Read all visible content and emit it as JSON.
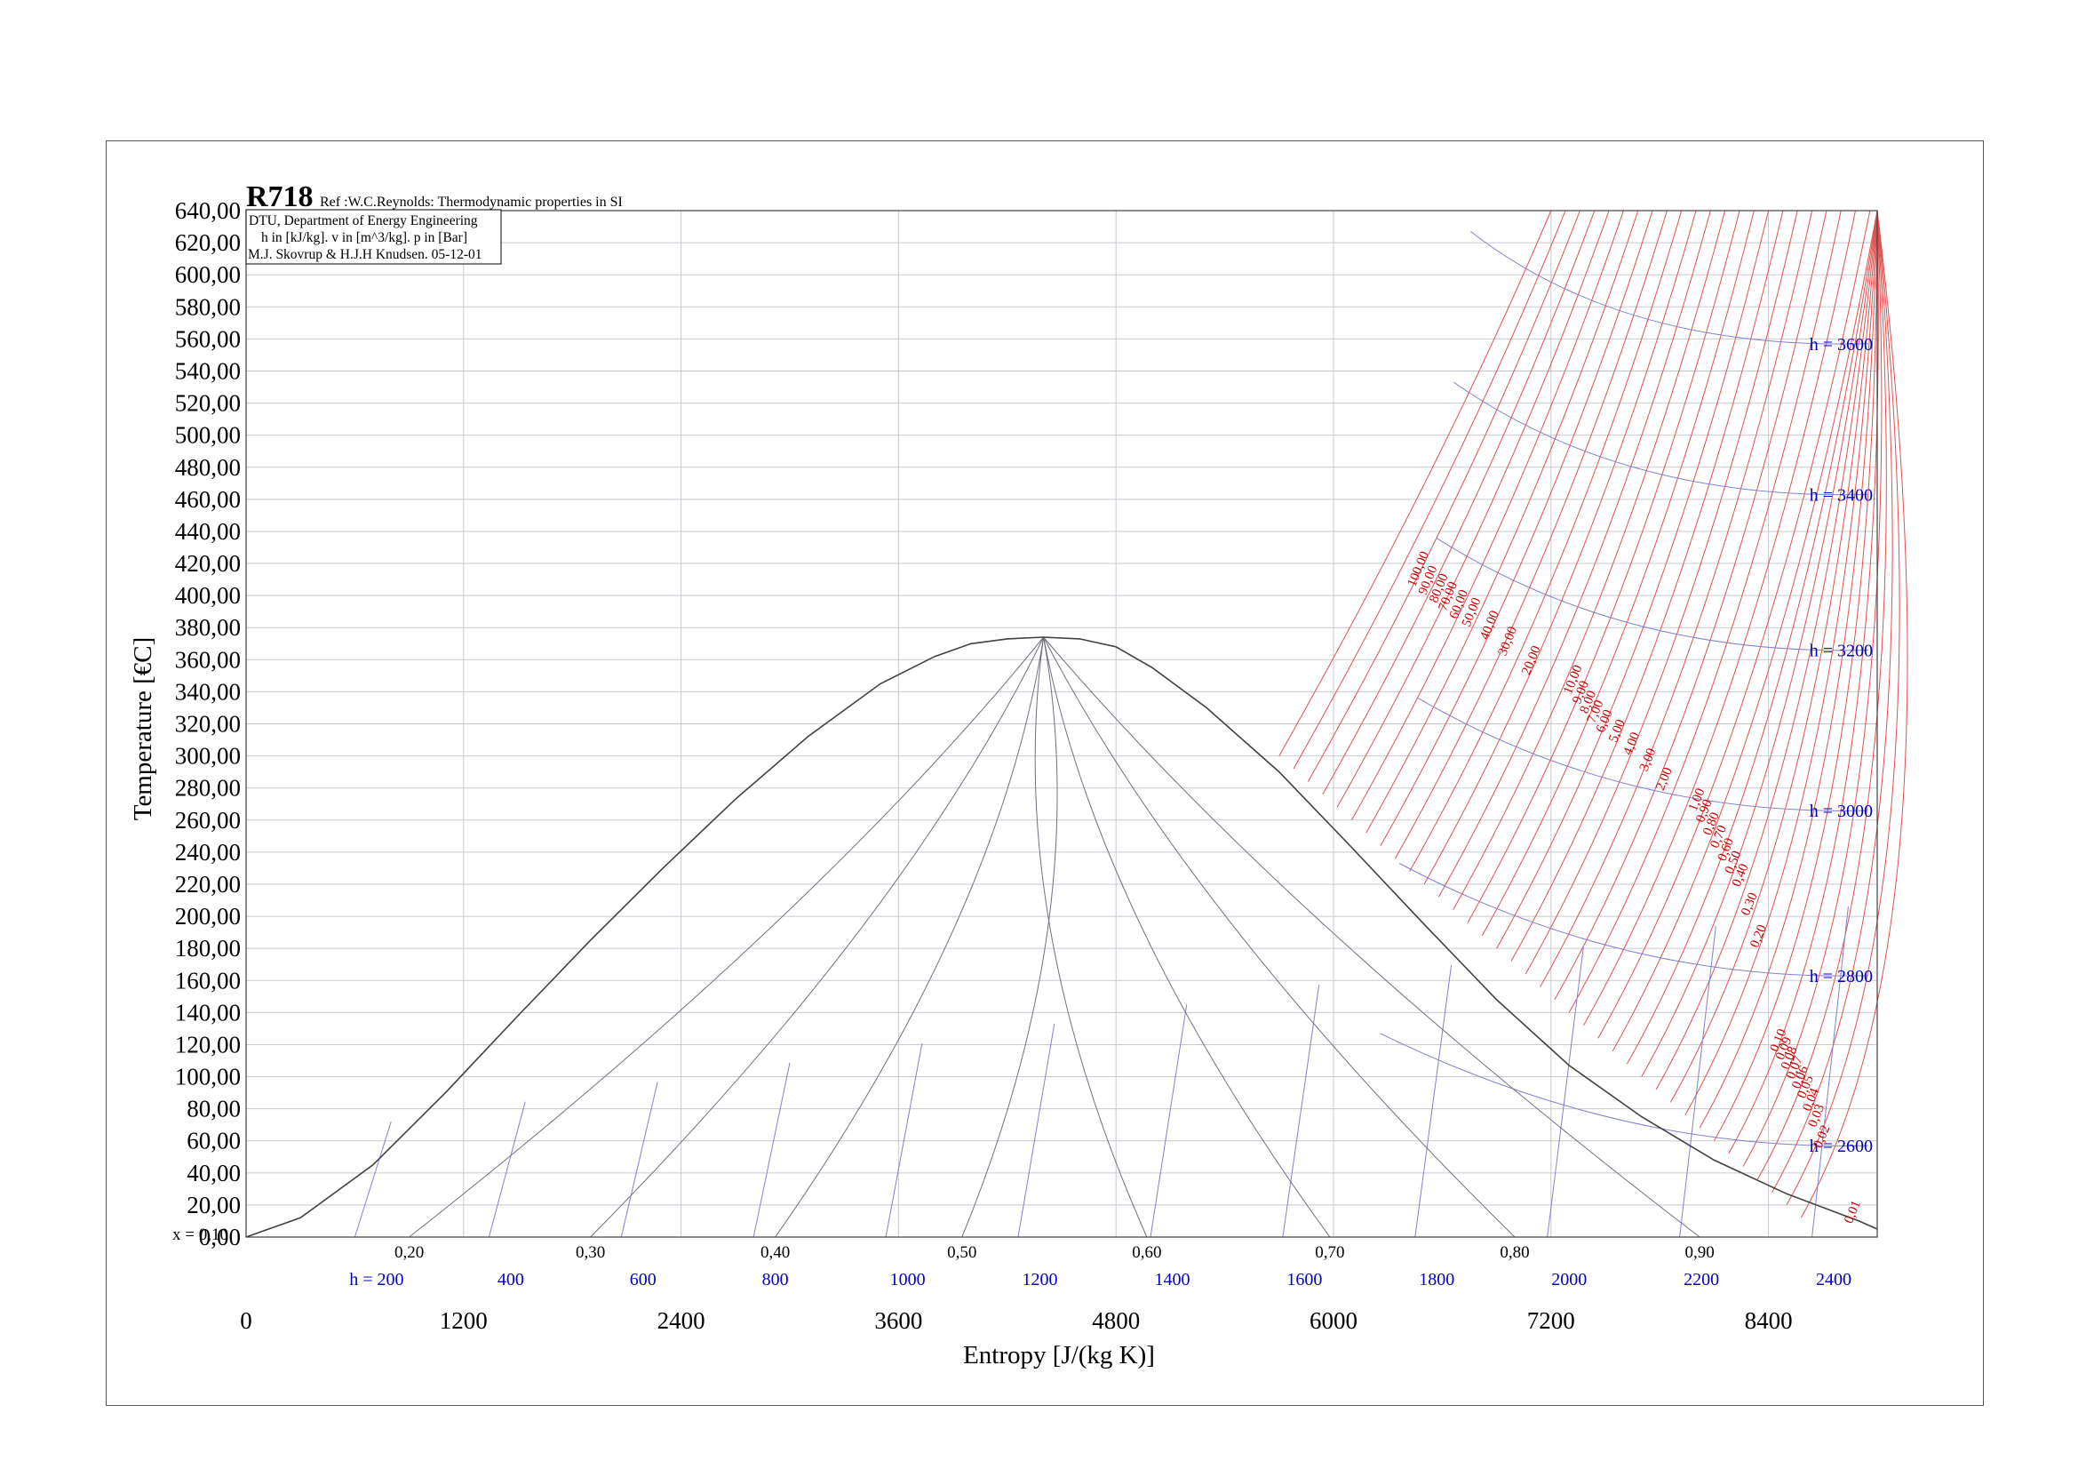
{
  "chart_data": {
    "type": "line",
    "title": "R718",
    "subtitle": "Ref :W.C.Reynolds: Thermodynamic properties in SI",
    "info_lines": [
      "DTU, Department of Energy Engineering",
      "h in [kJ/kg]. v in [m^3/kg]. p in [Bar]",
      "M.J. Skovrup & H.J.H Knudsen. 05-12-01"
    ],
    "xlabel": "Entropy [J/(kg K)]",
    "ylabel": "Temperature [€C]",
    "xlim": [
      0,
      9000
    ],
    "ylim": [
      0,
      640
    ],
    "y_ticks": [
      "0,00",
      "20,00",
      "40,00",
      "60,00",
      "80,00",
      "100,00",
      "120,00",
      "140,00",
      "160,00",
      "180,00",
      "200,00",
      "220,00",
      "240,00",
      "260,00",
      "280,00",
      "300,00",
      "320,00",
      "340,00",
      "360,00",
      "380,00",
      "400,00",
      "420,00",
      "440,00",
      "460,00",
      "480,00",
      "500,00",
      "520,00",
      "540,00",
      "560,00",
      "580,00",
      "600,00",
      "620,00",
      "640,00"
    ],
    "x_ticks": [
      "0",
      "1200",
      "2400",
      "3600",
      "4800",
      "6000",
      "7200",
      "8400"
    ],
    "x_tick_values": [
      0,
      1200,
      2400,
      3600,
      4800,
      6000,
      7200,
      8400
    ],
    "quality_prefix": "x = 0,10",
    "quality_labels": [
      "0,20",
      "0,30",
      "0,40",
      "0,50",
      "0,60",
      "0,70",
      "0,80",
      "0,90"
    ],
    "quality_label_x": [
      900,
      1900,
      2920,
      3950,
      4970,
      5980,
      7000,
      8020
    ],
    "bottom_enthalpy_labels": [
      "h = 200",
      "400",
      "600",
      "800",
      "1000",
      "1200",
      "1400",
      "1600",
      "1800",
      "2000",
      "2200",
      "2400"
    ],
    "bottom_enthalpy_x": [
      720,
      1460,
      2190,
      2920,
      3650,
      4380,
      5110,
      5840,
      6570,
      7300,
      8030,
      8760
    ],
    "enthalpy_isolines_labels": [
      "h = 3600",
      "h = 3400",
      "h = 3200",
      "h = 3000",
      "h = 2800",
      "h = 2600"
    ],
    "enthalpy_isolines_T": [
      557,
      463,
      366,
      266,
      163,
      57
    ],
    "pressure_labels": [
      "100,00",
      "90,00",
      "80,00",
      "70,00",
      "60,00",
      "50,00",
      "40,00",
      "30,00",
      "20,00",
      "10,00",
      "9,00",
      "8,00",
      "7,00",
      "6,00",
      "5,00",
      "4,00",
      "3,00",
      "2,00",
      "1,00",
      "0,90",
      "0,80",
      "0,70",
      "0,60",
      "0,50",
      "0,40",
      "0,30",
      "0,20",
      "0,10",
      "0,09",
      "0,08",
      "0,07",
      "0,06",
      "0,05",
      "0,04",
      "0,03",
      "0,02",
      "0,01"
    ],
    "critical_point": {
      "s": 4400,
      "T": 374
    },
    "saturation_dome": {
      "s": [
        0,
        300,
        700,
        1100,
        1500,
        1900,
        2300,
        2700,
        3100,
        3500,
        3800,
        4000,
        4200,
        4400,
        4600,
        4800,
        5000,
        5300,
        5700,
        6100,
        6500,
        6900,
        7300,
        7700,
        8100,
        8500,
        8900,
        9000
      ],
      "T": [
        0,
        12,
        45,
        90,
        138,
        185,
        230,
        273,
        312,
        345,
        362,
        370,
        373,
        374,
        373,
        368,
        355,
        330,
        290,
        243,
        195,
        148,
        107,
        75,
        48,
        27,
        10,
        5
      ]
    },
    "series": [
      {
        "values": [
          0,
          12,
          45,
          90,
          138,
          185,
          230,
          273,
          312,
          345,
          362,
          370,
          373,
          374,
          373,
          368,
          355,
          330,
          290,
          243,
          195,
          148,
          107,
          75,
          48,
          27,
          10,
          5
        ]
      }
    ],
    "colors": {
      "dome": "#404040",
      "quality_lines": "#707080",
      "isenthalps": "#8080d0",
      "isobars": "#e05050",
      "enthalpy_text": "#0000c8",
      "pressure_text": "#c80000",
      "grid": "#c8c8d0"
    },
    "grid": true
  }
}
